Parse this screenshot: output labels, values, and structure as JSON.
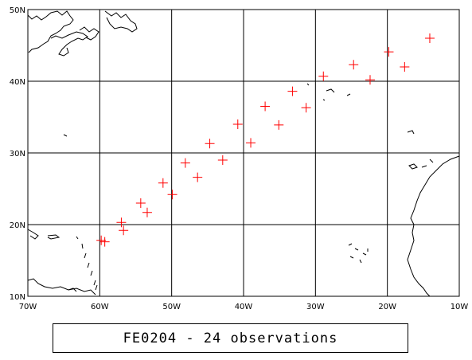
{
  "caption": "FE0204 - 24 observations",
  "map": {
    "lon_range": [
      -70,
      -10
    ],
    "lat_range": [
      10,
      50
    ],
    "lon_ticks": [
      {
        "value": -70,
        "label": "70W"
      },
      {
        "value": -60,
        "label": "60W"
      },
      {
        "value": -50,
        "label": "50W"
      },
      {
        "value": -40,
        "label": "40W"
      },
      {
        "value": -30,
        "label": "30W"
      },
      {
        "value": -20,
        "label": "20W"
      },
      {
        "value": -10,
        "label": "10W"
      }
    ],
    "lat_ticks": [
      {
        "value": 10,
        "label": "10N"
      },
      {
        "value": 20,
        "label": "20N"
      },
      {
        "value": 30,
        "label": "30N"
      },
      {
        "value": 40,
        "label": "40N"
      },
      {
        "value": 50,
        "label": "50N"
      }
    ],
    "marker_color": "#ff0000",
    "grid_color": "#000000"
  },
  "chart_data": {
    "type": "scatter",
    "title": "FE0204 - 24 observations",
    "xlim": [
      -70,
      -10
    ],
    "ylim": [
      10,
      50
    ],
    "grid": true,
    "points": [
      {
        "lon": -59.8,
        "lat": 17.8
      },
      {
        "lon": -59.3,
        "lat": 17.6
      },
      {
        "lon": -57.0,
        "lat": 20.3
      },
      {
        "lon": -56.7,
        "lat": 19.2
      },
      {
        "lon": -54.3,
        "lat": 23.0
      },
      {
        "lon": -53.4,
        "lat": 21.7
      },
      {
        "lon": -51.2,
        "lat": 25.8
      },
      {
        "lon": -49.9,
        "lat": 24.2
      },
      {
        "lon": -48.1,
        "lat": 28.6
      },
      {
        "lon": -46.4,
        "lat": 26.6
      },
      {
        "lon": -44.7,
        "lat": 31.3
      },
      {
        "lon": -42.9,
        "lat": 29.0
      },
      {
        "lon": -40.8,
        "lat": 34.0
      },
      {
        "lon": -39.0,
        "lat": 31.4
      },
      {
        "lon": -37.0,
        "lat": 36.5
      },
      {
        "lon": -35.1,
        "lat": 33.9
      },
      {
        "lon": -33.2,
        "lat": 38.6
      },
      {
        "lon": -31.3,
        "lat": 36.3
      },
      {
        "lon": -28.9,
        "lat": 40.7
      },
      {
        "lon": -24.7,
        "lat": 42.3
      },
      {
        "lon": -22.4,
        "lat": 40.2
      },
      {
        "lon": -19.8,
        "lat": 44.1
      },
      {
        "lon": -17.6,
        "lat": 42.0
      },
      {
        "lon": -14.1,
        "lat": 46.0
      }
    ]
  }
}
